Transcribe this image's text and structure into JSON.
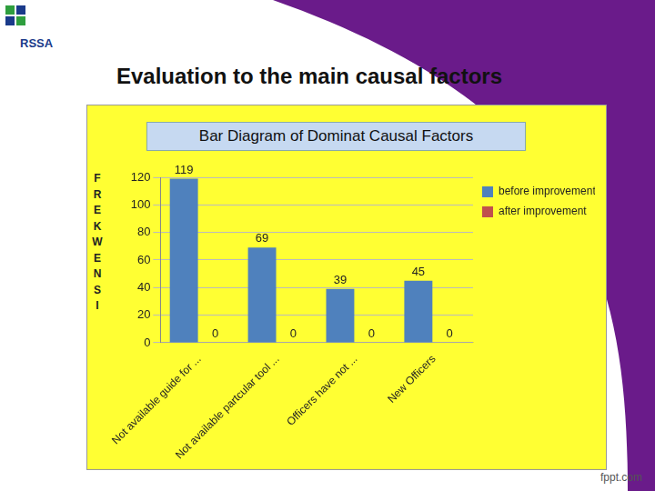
{
  "slide": {
    "logo": "RSSA",
    "title": "Evaluation to the main causal factors",
    "footer": "fppt.com"
  },
  "chart_data": {
    "type": "bar",
    "title": "Bar Diagram of Dominat Causal Factors",
    "y_label": "FREKWENSI",
    "categories": [
      "Not available guide for ...",
      "Not available partcular tool ...",
      "Officers have not ...",
      "New Officers"
    ],
    "series": [
      {
        "name": "before improvement",
        "color": "#4f81bd",
        "values": [
          119,
          69,
          39,
          45
        ]
      },
      {
        "name": "after improvement",
        "color": "#c0504d",
        "values": [
          0,
          0,
          0,
          0
        ]
      }
    ],
    "ylim": [
      0,
      120
    ],
    "yticks": [
      0,
      20,
      40,
      60,
      80,
      100,
      120
    ],
    "grid": true,
    "legend": "right",
    "data_labels": true
  }
}
